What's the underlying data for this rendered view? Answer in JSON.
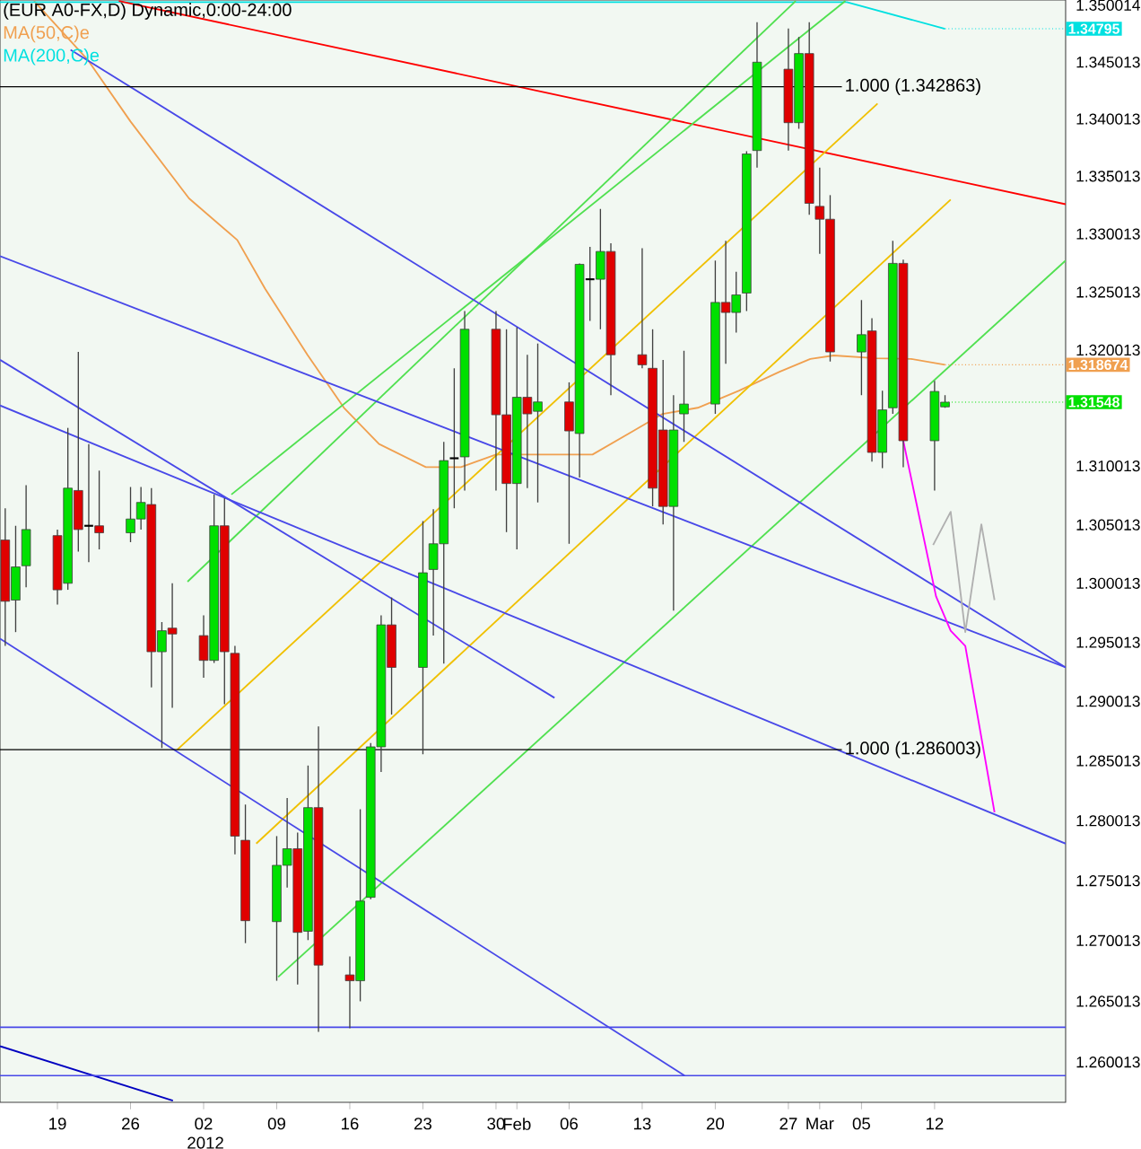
{
  "chart_data": {
    "type": "candlestick",
    "title": "(EUR A0-FX,D) Dynamic,0:00-24:00",
    "x": [
      "2011-12-14",
      "2011-12-15",
      "2011-12-16",
      "2011-12-19",
      "2011-12-20",
      "2011-12-21",
      "2011-12-22",
      "2011-12-23",
      "2011-12-26",
      "2011-12-27",
      "2011-12-28",
      "2011-12-29",
      "2011-12-30",
      "2012-01-02",
      "2012-01-03",
      "2012-01-04",
      "2012-01-05",
      "2012-01-06",
      "2012-01-09",
      "2012-01-10",
      "2012-01-11",
      "2012-01-12",
      "2012-01-13",
      "2012-01-16",
      "2012-01-17",
      "2012-01-18",
      "2012-01-19",
      "2012-01-20",
      "2012-01-23",
      "2012-01-24",
      "2012-01-25",
      "2012-01-26",
      "2012-01-27",
      "2012-01-30",
      "2012-01-31",
      "2012-02-01",
      "2012-02-02",
      "2012-02-03",
      "2012-02-06",
      "2012-02-07",
      "2012-02-08",
      "2012-02-09",
      "2012-02-10",
      "2012-02-13",
      "2012-02-14",
      "2012-02-15",
      "2012-02-16",
      "2012-02-17",
      "2012-02-20",
      "2012-02-21",
      "2012-02-22",
      "2012-02-23",
      "2012-02-24",
      "2012-02-27",
      "2012-02-28",
      "2012-02-29",
      "2012-03-01",
      "2012-03-02",
      "2012-03-05",
      "2012-03-06",
      "2012-03-07",
      "2012-03-08",
      "2012-03-09",
      "2012-03-12",
      "2012-03-13"
    ],
    "ohlc": [
      [
        1.3037,
        1.3064,
        1.2947,
        1.2985
      ],
      [
        1.2986,
        1.3049,
        1.2959,
        1.3014
      ],
      [
        1.3015,
        1.3084,
        1.2997,
        1.3046
      ],
      [
        1.3041,
        1.3046,
        1.2982,
        1.2995
      ],
      [
        1.3,
        1.3133,
        1.2995,
        1.3081
      ],
      [
        1.3079,
        1.3198,
        1.3027,
        1.3046
      ],
      [
        1.3049,
        1.3119,
        1.3018,
        1.3049
      ],
      [
        1.3049,
        1.3096,
        1.3029,
        1.3043
      ],
      [
        1.3043,
        1.3082,
        1.3035,
        1.3055
      ],
      [
        1.3055,
        1.3082,
        1.3046,
        1.3069
      ],
      [
        1.3067,
        1.3081,
        1.2912,
        1.2942
      ],
      [
        1.2942,
        1.2967,
        1.2861,
        1.296
      ],
      [
        1.2962,
        1.3,
        1.2895,
        1.2957
      ],
      [
        1.2956,
        1.2973,
        1.292,
        1.2935
      ],
      [
        1.2935,
        1.3076,
        1.2933,
        1.3049
      ],
      [
        1.3049,
        1.3073,
        1.2898,
        1.2942
      ],
      [
        1.2941,
        1.2947,
        1.2772,
        1.2787
      ],
      [
        1.2784,
        1.2814,
        1.2698,
        1.2717
      ],
      [
        1.2716,
        1.2787,
        1.2667,
        1.2763
      ],
      [
        1.2763,
        1.2819,
        1.2744,
        1.2777
      ],
      [
        1.2777,
        1.279,
        1.2664,
        1.2707
      ],
      [
        1.2708,
        1.2846,
        1.2701,
        1.2811
      ],
      [
        1.2811,
        1.2879,
        1.2625,
        1.268
      ],
      [
        1.2672,
        1.2687,
        1.2628,
        1.2667
      ],
      [
        1.2667,
        1.281,
        1.265,
        1.2733
      ],
      [
        1.2736,
        1.2865,
        1.2735,
        1.2862
      ],
      [
        1.2862,
        1.2973,
        1.2841,
        1.2965
      ],
      [
        1.2965,
        1.2988,
        1.2889,
        1.2929
      ],
      [
        1.2929,
        1.3053,
        1.2856,
        1.3009
      ],
      [
        1.3012,
        1.3063,
        1.2956,
        1.3034
      ],
      [
        1.3034,
        1.3121,
        1.2932,
        1.3105
      ],
      [
        1.3107,
        1.3184,
        1.3064,
        1.3107
      ],
      [
        1.3108,
        1.3233,
        1.3079,
        1.3218
      ],
      [
        1.3218,
        1.3233,
        1.3079,
        1.3144
      ],
      [
        1.3144,
        1.3218,
        1.3044,
        1.3085
      ],
      [
        1.3085,
        1.3219,
        1.3029,
        1.3159
      ],
      [
        1.3159,
        1.3196,
        1.3081,
        1.3145
      ],
      [
        1.3147,
        1.3205,
        1.3069,
        1.3155
      ],
      [
        1.3155,
        1.3172,
        1.3034,
        1.313
      ],
      [
        1.3128,
        1.3275,
        1.309,
        1.3274
      ],
      [
        1.3261,
        1.3289,
        1.3225,
        1.3261
      ],
      [
        1.3261,
        1.3322,
        1.3218,
        1.3285
      ],
      [
        1.3285,
        1.3292,
        1.3161,
        1.3196
      ],
      [
        1.3196,
        1.3288,
        1.3184,
        1.3187
      ],
      [
        1.3184,
        1.3218,
        1.3066,
        1.3081
      ],
      [
        1.3131,
        1.3191,
        1.305,
        1.3066
      ],
      [
        1.3066,
        1.3161,
        1.2977,
        1.3131
      ],
      [
        1.3145,
        1.3199,
        1.3121,
        1.3153
      ],
      [
        1.3153,
        1.3277,
        1.3145,
        1.3241
      ],
      [
        1.3241,
        1.3294,
        1.3188,
        1.3232
      ],
      [
        1.3232,
        1.3267,
        1.3215,
        1.3247
      ],
      [
        1.3249,
        1.3372,
        1.3233,
        1.337
      ],
      [
        1.3373,
        1.3485,
        1.3358,
        1.345
      ],
      [
        1.3444,
        1.348,
        1.3373,
        1.3397
      ],
      [
        1.3397,
        1.3472,
        1.3392,
        1.3458
      ],
      [
        1.3458,
        1.3485,
        1.3317,
        1.3327
      ],
      [
        1.3324,
        1.3358,
        1.3283,
        1.3313
      ],
      [
        1.3313,
        1.3334,
        1.319,
        1.3198
      ],
      [
        1.3198,
        1.3243,
        1.3161,
        1.3213
      ],
      [
        1.3216,
        1.3227,
        1.3104,
        1.3112
      ],
      [
        1.3112,
        1.3165,
        1.3098,
        1.3148
      ],
      [
        1.315,
        1.3294,
        1.3145,
        1.3275
      ],
      [
        1.3275,
        1.3278,
        1.3099,
        1.3122
      ],
      [
        1.3122,
        1.3173,
        1.3079,
        1.3164
      ],
      [
        1.3151,
        1.3161,
        1.315,
        1.31548
      ]
    ],
    "series": [
      {
        "type": "line",
        "name": "MA(50,C)e",
        "color": "#f0a050",
        "x": [
          "2011-12-16T18:14",
          "2011-12-21T22:34",
          "2011-12-26",
          "2011-12-31T14:24",
          "2012-01-05T05:17",
          "2012-01-07T21:07",
          "2012-01-11T22:34",
          "2012-01-15T10:34",
          "2012-01-18T19:12",
          "2012-01-23T06:43",
          "2012-01-26T15:22",
          "2012-01-30",
          "2012-02-03T14:53",
          "2012-02-08T05:46",
          "2012-02-12T03:50",
          "2012-02-14T23:02",
          "2012-02-18T07:41",
          "2012-02-22T05:46",
          "2012-02-26T03:50",
          "2012-02-29T02:24",
          "2012-03-02T08:10",
          "2012-03-06T09:36",
          "2012-03-09T18:14",
          "2012-03-13"
        ],
        "values": [
          1.3504,
          1.3452,
          1.3398,
          1.3331,
          1.3295,
          1.3253,
          1.3196,
          1.315,
          1.3119,
          1.3099,
          1.3099,
          1.311,
          1.311,
          1.311,
          1.313,
          1.3145,
          1.315,
          1.3165,
          1.3181,
          1.3192,
          1.3195,
          1.3193,
          1.3192,
          1.318674
        ]
      },
      {
        "type": "line",
        "name": "MA(200,C)e",
        "color": "#00e0e0",
        "x": [
          "2011-12-13T12:00",
          "2012-03-03T14:24",
          "2012-03-13"
        ],
        "values": [
          1.3503,
          1.3503,
          1.34795
        ]
      },
      {
        "type": "line",
        "color": "#ff0000",
        "x": [
          "2011-12-24T21:07",
          "2012-03-24T13:12"
        ],
        "values": [
          1.3504,
          1.3326
        ]
      },
      {
        "type": "line",
        "color": "#f0c000",
        "x": [
          "2011-12-30T11:31",
          "2012-03-06T12:58"
        ],
        "values": [
          1.286,
          1.3414
        ]
      },
      {
        "type": "line",
        "color": "#f0c000",
        "x": [
          "2012-01-07T00:58",
          "2012-03-13T12:58"
        ],
        "values": [
          1.2781,
          1.333
        ]
      },
      {
        "type": "line",
        "color": "#50e050",
        "x": [
          "2011-12-31T11:02",
          "2012-02-27T16:48"
        ],
        "values": [
          1.3002,
          1.3504
        ]
      },
      {
        "type": "line",
        "color": "#50e050",
        "x": [
          "2012-01-04T15:50",
          "2012-03-03T11:02"
        ],
        "values": [
          1.3076,
          1.3504
        ]
      },
      {
        "type": "line",
        "color": "#50e050",
        "x": [
          "2012-01-09T03:22",
          "2012-03-24T13:12"
        ],
        "values": [
          1.267,
          1.3277
        ]
      },
      {
        "type": "line",
        "color": "#4848e8",
        "x": [
          "2011-12-20T06:14",
          "2012-03-24T13:12"
        ],
        "values": [
          1.3461,
          1.2929
        ]
      },
      {
        "type": "line",
        "color": "#4848e8",
        "x": [
          "2011-12-13T12:00",
          "2012-03-24T13:12"
        ],
        "values": [
          1.3281,
          1.2929
        ]
      },
      {
        "type": "line",
        "color": "#4848e8",
        "x": [
          "2011-12-13T12:00",
          "2012-02-04T14:24"
        ],
        "values": [
          1.3191,
          1.2903
        ]
      },
      {
        "type": "line",
        "color": "#4848e8",
        "x": [
          "2011-12-13T12:00",
          "2012-03-24T13:12"
        ],
        "values": [
          1.3152,
          1.2781
        ]
      },
      {
        "type": "line",
        "color": "#4848e8",
        "x": [
          "2011-12-13T12:00",
          "2012-02-17T01:26"
        ],
        "values": [
          1.2953,
          1.2589
        ]
      },
      {
        "type": "line",
        "color": "#0000c0",
        "x": [
          "2011-12-13T12:00",
          "2011-12-30T01:26"
        ],
        "values": [
          1.2613,
          1.2568
        ]
      },
      {
        "type": "line",
        "color": "#ff00ff",
        "x": [
          "2012-03-09",
          "2012-03-12T03:22",
          "2012-03-13T12:58",
          "2012-03-14T22:34",
          "2012-03-17T17:46"
        ],
        "values": [
          1.3122,
          1.2989,
          1.296,
          1.2947,
          1.2807
        ]
      },
      {
        "type": "line",
        "color": "#b0b0b0",
        "x": [
          "2012-03-11T20:38",
          "2012-03-13T12:58",
          "2012-03-14T22:34",
          "2012-03-16T11:31",
          "2012-03-17T17:46"
        ],
        "values": [
          1.3033,
          1.3061,
          1.2959,
          1.305,
          1.2986
        ]
      }
    ],
    "ref_lines": [
      {
        "axis": "y",
        "value": 1.342863,
        "label": "1.000 (1.342863)",
        "color": "#000000"
      },
      {
        "axis": "y",
        "value": 1.286003,
        "label": "1.000 (1.286003)",
        "color": "#000000"
      },
      {
        "axis": "y",
        "value": 1.2629,
        "color": "#4848e8"
      },
      {
        "axis": "y",
        "value": 1.2589,
        "color": "#4848e8"
      }
    ],
    "annotations": [
      {
        "text": "1.34795",
        "x": "2012-03-13",
        "y": 1.34795
      },
      {
        "text": "1.318674",
        "x": "2012-03-13",
        "y": 1.318674
      },
      {
        "text": "1.31548",
        "x": "2012-03-13",
        "y": 1.31548
      }
    ],
    "log": "y",
    "legend": "top left",
    "xlim": [
      "2011-12-13T12:00",
      "2012-03-24T13:12"
    ],
    "xticks": [
      {
        "value": "2011-12-19",
        "label": "19"
      },
      {
        "value": "2011-12-26",
        "label": "26"
      },
      {
        "value": "2012-01-02",
        "label": "02 2012"
      },
      {
        "value": "2012-01-09",
        "label": "09"
      },
      {
        "value": "2012-01-16",
        "label": "16"
      },
      {
        "value": "2012-01-23",
        "label": "23"
      },
      {
        "value": "2012-01-30",
        "label": "30"
      },
      {
        "value": "2012-02-01",
        "label": "Feb"
      },
      {
        "value": "2012-02-06",
        "label": "06"
      },
      {
        "value": "2012-02-13",
        "label": "13"
      },
      {
        "value": "2012-02-20",
        "label": "20"
      },
      {
        "value": "2012-02-27",
        "label": "27"
      },
      {
        "value": "2012-03-01",
        "label": "Mar"
      },
      {
        "value": "2012-03-05",
        "label": "05"
      },
      {
        "value": "2012-03-12",
        "label": "12"
      }
    ],
    "ylim": [
      1.2567,
      1.3505
    ],
    "yticks": [
      1.260013,
      1.265013,
      1.270013,
      1.275013,
      1.280013,
      1.285013,
      1.290013,
      1.295013,
      1.300013,
      1.305013,
      1.310013,
      1.320013,
      1.325013,
      1.330013,
      1.335013,
      1.340013,
      1.345013,
      1.350014
    ]
  }
}
